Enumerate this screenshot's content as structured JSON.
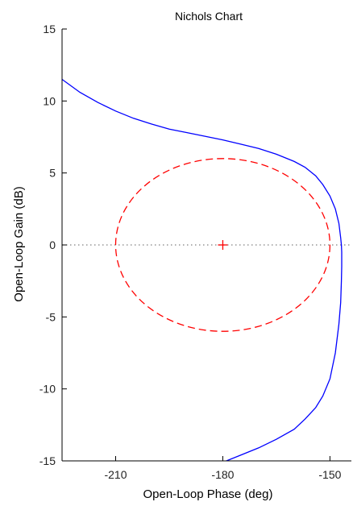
{
  "chart_data": {
    "type": "line",
    "title": "Nichols Chart",
    "xlabel": "Open-Loop Phase (deg)",
    "ylabel": "Open-Loop Gain (dB)",
    "xlim": [
      -225,
      -144
    ],
    "ylim": [
      -15,
      15
    ],
    "xticks": [
      {
        "value": -210,
        "label": "-210"
      },
      {
        "value": -180,
        "label": "-180"
      },
      {
        "value": -150,
        "label": "-150"
      }
    ],
    "yticks": [
      {
        "value": 15,
        "label": "15"
      },
      {
        "value": 10,
        "label": "10"
      },
      {
        "value": 5,
        "label": "5"
      },
      {
        "value": 0,
        "label": "0"
      },
      {
        "value": -5,
        "label": "-5"
      },
      {
        "value": -10,
        "label": "-10"
      },
      {
        "value": -15,
        "label": "-15"
      }
    ],
    "grid": false,
    "colors": {
      "curve": "#0000ff",
      "contour": "#ff0000",
      "critical_point": "#ff0000",
      "zero_line": "#808080",
      "axes": "#000000"
    },
    "series": [
      {
        "x": [
          -225,
          -220,
          -215,
          -210,
          -205,
          -200,
          -195,
          -190,
          -185,
          -180,
          -175,
          -170,
          -165,
          -160,
          -157,
          -154,
          -152,
          -150,
          -148.5,
          -147.5,
          -147,
          -146.8,
          -146.7,
          -146.7,
          -146.8,
          -147,
          -147.5,
          -148.5,
          -150,
          -152,
          -154,
          -157,
          -160,
          -165,
          -170,
          -175,
          -180,
          -185
        ],
        "y": [
          11.5,
          10.6,
          9.9,
          9.3,
          8.8,
          8.4,
          8.05,
          7.8,
          7.55,
          7.3,
          7.0,
          6.7,
          6.3,
          5.8,
          5.4,
          4.8,
          4.2,
          3.4,
          2.5,
          1.5,
          0.5,
          0,
          -0.5,
          -1.5,
          -2.5,
          -4,
          -5.5,
          -7.5,
          -9.3,
          -10.5,
          -11.3,
          -12.1,
          -12.8,
          -13.5,
          -14.1,
          -14.6,
          -15.1,
          -15.6
        ]
      },
      {
        "center": [
          -180,
          0
        ],
        "radius_x": 30,
        "radius_y": 6,
        "line_style": "dashed"
      }
    ],
    "critical_point": {
      "x": -180,
      "y": 0,
      "marker": "+"
    },
    "reference_line": {
      "y": 0,
      "line_style": "dotted"
    }
  }
}
